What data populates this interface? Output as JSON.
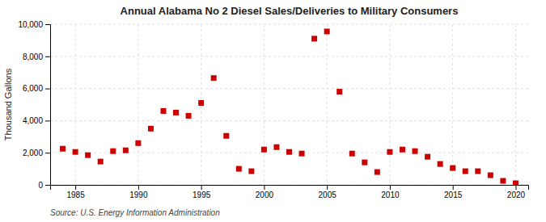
{
  "chart_data": {
    "type": "scatter",
    "title": "Annual Alabama No 2 Diesel Sales/Deliveries to Military Consumers",
    "ylabel": "Thousand Gallons",
    "source": "Source: U.S. Energy Information Administration",
    "color": "#cc0000",
    "marker": "square",
    "grid": true,
    "xlim": [
      1983,
      2021
    ],
    "ylim": [
      0,
      10000
    ],
    "xticks": [
      1985,
      1990,
      1995,
      2000,
      2005,
      2010,
      2015,
      2020
    ],
    "yticks": [
      0,
      {
        "value": 2000,
        "label": "2,000"
      },
      {
        "value": 4000,
        "label": "4,000"
      },
      {
        "value": 6000,
        "label": "6,000"
      },
      {
        "value": 8000,
        "label": "8,000"
      },
      {
        "value": 10000,
        "label": "10,000"
      }
    ],
    "x": [
      1984,
      1985,
      1986,
      1987,
      1988,
      1989,
      1990,
      1991,
      1992,
      1993,
      1994,
      1995,
      1996,
      1997,
      1998,
      1999,
      2000,
      2001,
      2002,
      2003,
      2004,
      2005,
      2006,
      2007,
      2008,
      2009,
      2010,
      2011,
      2012,
      2013,
      2014,
      2015,
      2016,
      2017,
      2018,
      2019,
      2020
    ],
    "values": [
      2250,
      2050,
      1850,
      1450,
      2100,
      2150,
      2600,
      3500,
      4600,
      4500,
      4300,
      5100,
      6650,
      3050,
      1000,
      850,
      2200,
      2350,
      2050,
      1950,
      9100,
      9550,
      5800,
      1950,
      1400,
      800,
      2050,
      2200,
      2100,
      1750,
      1300,
      1050,
      850,
      850,
      600,
      250,
      100
    ]
  }
}
